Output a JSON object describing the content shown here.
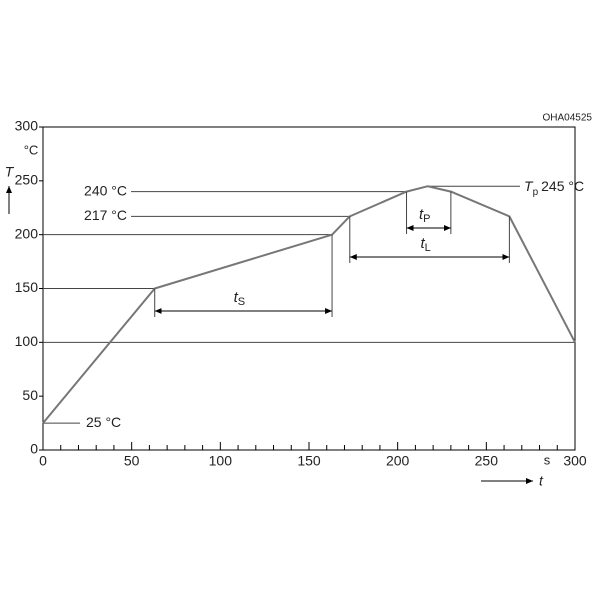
{
  "chart_data": {
    "type": "line",
    "code": "OHA04525",
    "y_label": "T",
    "y_unit": "°C",
    "x_label": "t",
    "x_unit": "s",
    "x": [
      0,
      63,
      163,
      173,
      205,
      217,
      230,
      263,
      300
    ],
    "series": [
      {
        "values": [
          25,
          150,
          200,
          217,
          240,
          245,
          240,
          217,
          100
        ],
        "color": "#777777"
      }
    ],
    "xlim": [
      0,
      300
    ],
    "xticks": [
      0,
      50,
      100,
      150,
      200,
      250,
      300
    ],
    "ylim": [
      0,
      300
    ],
    "yticks": [
      0,
      50,
      100,
      150,
      200,
      250,
      300
    ],
    "levels": [
      {
        "value": 240,
        "label": "240 °C"
      },
      {
        "value": 217,
        "label": "217 °C"
      },
      {
        "value": 25,
        "label": "25 °C"
      }
    ],
    "peak": {
      "symbol": "T",
      "subscript": "p",
      "value": 245,
      "label": "245 °C"
    },
    "intervals": [
      {
        "symbol": "t",
        "subscript": "S",
        "start": 63,
        "end": 163
      },
      {
        "symbol": "t",
        "subscript": "P",
        "start": 205,
        "end": 230
      },
      {
        "symbol": "t",
        "subscript": "L",
        "start": 173,
        "end": 263
      }
    ]
  }
}
